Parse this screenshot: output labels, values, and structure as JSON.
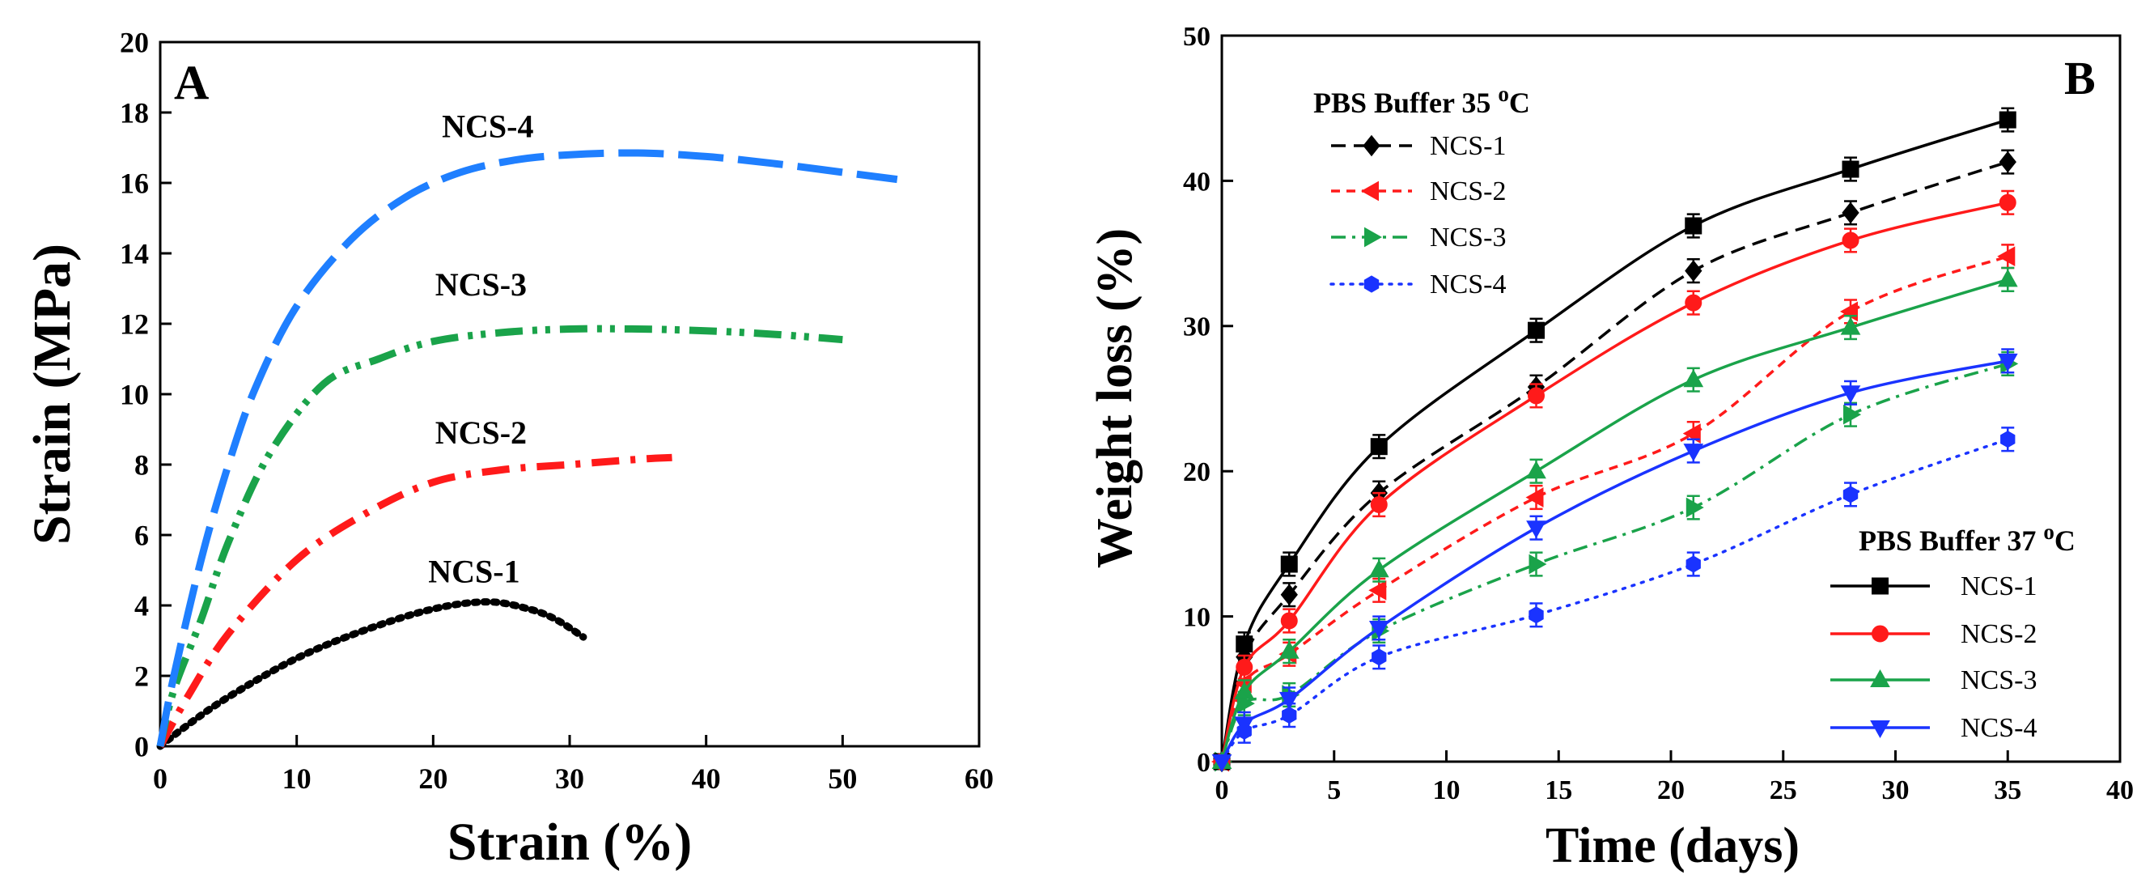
{
  "chart_data": [
    {
      "panel": "A",
      "type": "line",
      "xlabel": "Strain (%)",
      "ylabel": "Strain (MPa)",
      "xlim": [
        0,
        60
      ],
      "ylim": [
        0,
        20
      ],
      "xticks": [
        "0",
        "10",
        "20",
        "30",
        "40",
        "50",
        "60"
      ],
      "yticks": [
        "0",
        "2",
        "4",
        "6",
        "8",
        "10",
        "12",
        "14",
        "16",
        "18",
        "20"
      ],
      "grid": false,
      "series": [
        {
          "name": "NCS-1",
          "color": "#000000",
          "style": "dotted",
          "points": [
            [
              0,
              0
            ],
            [
              2,
              0.6
            ],
            [
              5,
              1.4
            ],
            [
              10,
              2.5
            ],
            [
              15,
              3.3
            ],
            [
              20,
              3.9
            ],
            [
              24,
              4.1
            ],
            [
              27,
              3.9
            ],
            [
              29,
              3.6
            ],
            [
              31,
              3.1
            ]
          ]
        },
        {
          "name": "NCS-2",
          "color": "#ff1a1a",
          "style": "dash-dot",
          "points": [
            [
              0,
              0
            ],
            [
              2,
              1.4
            ],
            [
              5,
              3.2
            ],
            [
              10,
              5.3
            ],
            [
              15,
              6.6
            ],
            [
              20,
              7.5
            ],
            [
              25,
              7.85
            ],
            [
              30,
              8.0
            ],
            [
              35,
              8.15
            ],
            [
              37.5,
              8.2
            ]
          ]
        },
        {
          "name": "NCS-3",
          "color": "#1aa34a",
          "style": "dash-dot-dot",
          "points": [
            [
              0,
              0
            ],
            [
              1,
              1.6
            ],
            [
              3,
              3.6
            ],
            [
              5,
              5.8
            ],
            [
              8,
              8.3
            ],
            [
              12,
              10.3
            ],
            [
              16,
              11.0
            ],
            [
              20,
              11.5
            ],
            [
              25,
              11.75
            ],
            [
              30,
              11.85
            ],
            [
              35,
              11.85
            ],
            [
              40,
              11.8
            ],
            [
              45,
              11.7
            ],
            [
              50,
              11.55
            ]
          ]
        },
        {
          "name": "NCS-4",
          "color": "#1f7fff",
          "style": "long-dash",
          "points": [
            [
              0,
              0
            ],
            [
              1,
              2.0
            ],
            [
              3,
              5.3
            ],
            [
              5,
              8.0
            ],
            [
              7,
              10.2
            ],
            [
              10,
              12.5
            ],
            [
              14,
              14.4
            ],
            [
              18,
              15.6
            ],
            [
              22,
              16.3
            ],
            [
              26,
              16.65
            ],
            [
              30,
              16.8
            ],
            [
              35,
              16.85
            ],
            [
              40,
              16.75
            ],
            [
              45,
              16.55
            ],
            [
              50,
              16.3
            ],
            [
              54,
              16.1
            ]
          ]
        }
      ],
      "curve_labels": [
        {
          "text": "NCS-4"
        },
        {
          "text": "NCS-3"
        },
        {
          "text": "NCS-2"
        },
        {
          "text": "NCS-1"
        }
      ]
    },
    {
      "panel": "B",
      "type": "line",
      "xlabel": "Time (days)",
      "ylabel": "Weight loss (%)",
      "xlim": [
        0,
        40
      ],
      "ylim": [
        0,
        50
      ],
      "xticks": [
        "0",
        "5",
        "10",
        "15",
        "20",
        "25",
        "30",
        "35",
        "40"
      ],
      "yticks": [
        "0",
        "10",
        "20",
        "30",
        "40",
        "50"
      ],
      "grid": false,
      "x": [
        0,
        1,
        3,
        7,
        14,
        21,
        28,
        35
      ],
      "legend_35": {
        "title": "PBS Buffer 35",
        "title_sup": "o",
        "title_unit": "C",
        "placement": "top-left"
      },
      "legend_37": {
        "title": "PBS Buffer 37",
        "title_sup": "o",
        "title_unit": "C",
        "placement": "bottom-right"
      },
      "series": [
        {
          "name": "NCS-1",
          "group": "35",
          "color": "#000000",
          "marker": "diamond",
          "dash": "dashed",
          "values": [
            0,
            7.2,
            11.5,
            18.5,
            25.8,
            33.8,
            37.8,
            41.3
          ]
        },
        {
          "name": "NCS-2",
          "group": "35",
          "color": "#ff1a1a",
          "marker": "triangle-left",
          "dash": "short-dash",
          "values": [
            0,
            5.4,
            7.4,
            11.8,
            18.2,
            22.6,
            31.0,
            34.8
          ]
        },
        {
          "name": "NCS-3",
          "group": "35",
          "color": "#1aa34a",
          "marker": "triangle-right",
          "dash": "dash-dot",
          "values": [
            0,
            4.0,
            4.6,
            9.0,
            13.6,
            17.5,
            23.9,
            27.4
          ]
        },
        {
          "name": "NCS-4",
          "group": "35",
          "color": "#1a33ff",
          "marker": "hexagon",
          "dash": "dotted",
          "values": [
            0,
            2.1,
            3.2,
            7.2,
            10.1,
            13.6,
            18.4,
            22.2
          ]
        },
        {
          "name": "NCS-1",
          "group": "37",
          "color": "#000000",
          "marker": "square",
          "dash": "solid",
          "values": [
            0,
            8.1,
            13.6,
            21.7,
            29.7,
            36.9,
            40.8,
            44.2
          ]
        },
        {
          "name": "NCS-2",
          "group": "37",
          "color": "#ff1a1a",
          "marker": "circle",
          "dash": "solid",
          "values": [
            0,
            6.5,
            9.7,
            17.7,
            25.2,
            31.6,
            35.9,
            38.5
          ]
        },
        {
          "name": "NCS-3",
          "group": "37",
          "color": "#1aa34a",
          "marker": "triangle-up",
          "dash": "solid",
          "values": [
            0,
            4.8,
            7.6,
            13.2,
            20.0,
            26.3,
            29.9,
            33.2
          ]
        },
        {
          "name": "NCS-4",
          "group": "37",
          "color": "#1a33ff",
          "marker": "triangle-down",
          "dash": "solid",
          "values": [
            0,
            2.6,
            4.3,
            9.2,
            16.1,
            21.4,
            25.4,
            27.6
          ]
        }
      ],
      "error": 0.8
    }
  ],
  "panel_labels": {
    "a": "A",
    "b": "B"
  }
}
